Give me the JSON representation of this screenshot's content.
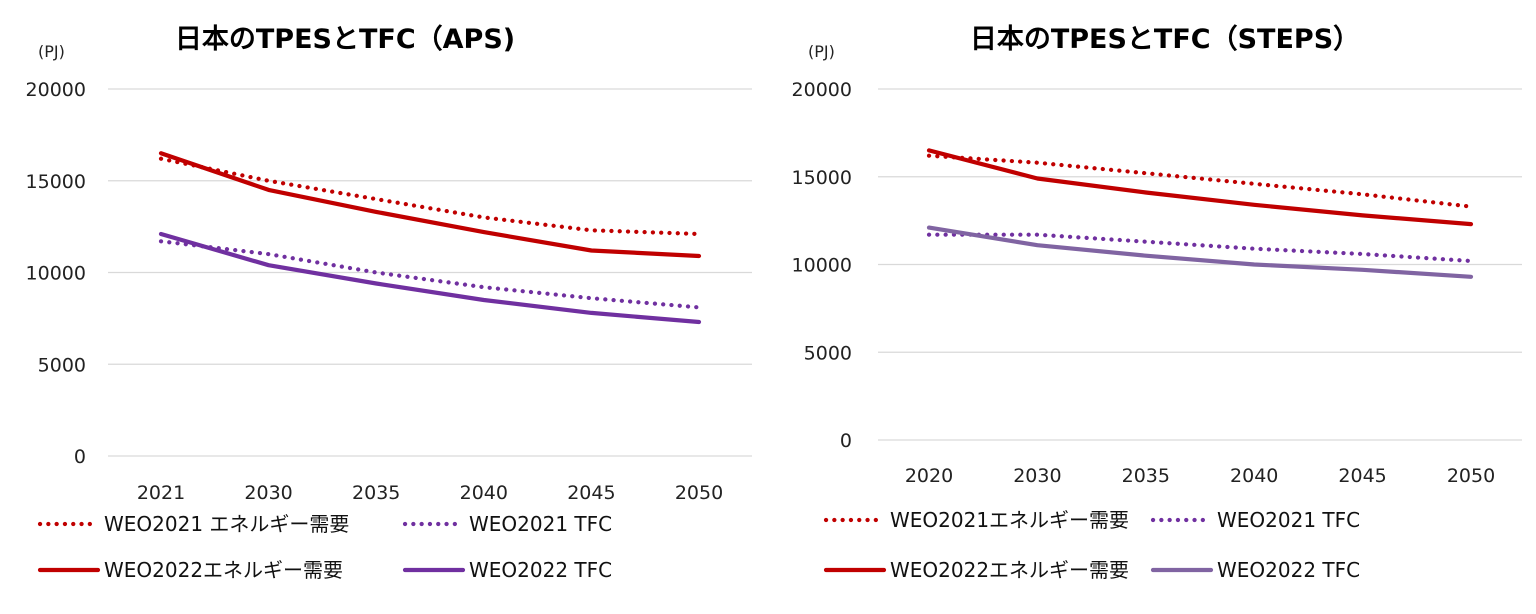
{
  "chart_data": [
    {
      "type": "line",
      "title": "日本のTPESとTFC（APS)",
      "ylabel": "(PJ)",
      "xlabel": "",
      "ylim": [
        0,
        20000
      ],
      "yticks": [
        "0",
        "5000",
        "10000",
        "15000",
        "20000"
      ],
      "categories": [
        "2021",
        "2030",
        "2035",
        "2040",
        "2045",
        "2050"
      ],
      "grid": true,
      "legend_position": "bottom",
      "series": [
        {
          "name": "WEO2021 エネルギー需要",
          "style": "dotted",
          "color": "#c00000",
          "values": [
            16200,
            15000,
            14000,
            13000,
            12300,
            12100
          ]
        },
        {
          "name": "WEO2021 TFC",
          "style": "dotted",
          "color": "#7030a0",
          "values": [
            11700,
            11000,
            10000,
            9200,
            8600,
            8100
          ]
        },
        {
          "name": "WEO2022エネルギー需要",
          "style": "solid",
          "color": "#c00000",
          "values": [
            16500,
            14500,
            13300,
            12200,
            11200,
            10900
          ]
        },
        {
          "name": "WEO2022 TFC",
          "style": "solid",
          "color": "#7030a0",
          "values": [
            12100,
            10400,
            9400,
            8500,
            7800,
            7300
          ]
        }
      ]
    },
    {
      "type": "line",
      "title": "日本のTPESとTFC（STEPS）",
      "ylabel": "(PJ)",
      "xlabel": "",
      "ylim": [
        0,
        20000
      ],
      "yticks": [
        "0",
        "5000",
        "10000",
        "15000",
        "20000"
      ],
      "categories": [
        "2020",
        "2030",
        "2035",
        "2040",
        "2045",
        "2050"
      ],
      "grid": true,
      "legend_position": "bottom",
      "series": [
        {
          "name": "WEO2021エネルギー需要",
          "style": "dotted",
          "color": "#c00000",
          "values": [
            16200,
            15800,
            15200,
            14600,
            14000,
            13300
          ]
        },
        {
          "name": "WEO2021 TFC",
          "style": "dotted",
          "color": "#7030a0",
          "values": [
            11700,
            11700,
            11300,
            10900,
            10600,
            10200
          ]
        },
        {
          "name": "WEO2022エネルギー需要",
          "style": "solid",
          "color": "#c00000",
          "values": [
            16500,
            14900,
            14100,
            13400,
            12800,
            12300
          ]
        },
        {
          "name": "WEO2022 TFC",
          "style": "solid",
          "color": "#8064a2",
          "values": [
            12100,
            11100,
            10500,
            10000,
            9700,
            9300
          ]
        }
      ]
    }
  ]
}
